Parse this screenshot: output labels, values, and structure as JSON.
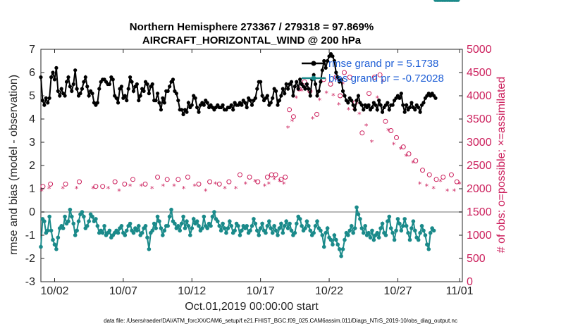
{
  "chart_data": {
    "type": "line",
    "title_line1": "Northern Hemisphere 273367 / 279318 = 97.869%",
    "title_line2": "AIRCRAFT_HORIZONTAL_WIND @ 200 hPa",
    "xlabel": "Oct.01,2019 00:00:00 start",
    "ylabel_left": "rmse and bias (model - observation)",
    "ylabel_right": "# of obs: o=possible; ×=assimilated",
    "footnote": "data file: /Users/raeder/DAI/ATM_forcXX/CAM6_setup/f.e21.FHIST_BGC.f09_025.CAM6assim.011/Diags_NTrS_2019-10/obs_diag_output.nc",
    "xlim": [
      0.5,
      31.2
    ],
    "ylim_left": [
      -3,
      7
    ],
    "ylim_right": [
      0,
      5000
    ],
    "x_ticks": [
      1.5,
      6.5,
      11.5,
      16.5,
      21.5,
      26.5,
      31.0
    ],
    "x_ticklabels": [
      "10/02",
      "10/07",
      "10/12",
      "10/17",
      "10/22",
      "10/27",
      "11/01"
    ],
    "y_left_ticks": [
      "-3",
      "-2",
      "-1",
      "0",
      "1",
      "2",
      "3",
      "4",
      "5",
      "6",
      "7"
    ],
    "y_right_ticks": [
      "0",
      "500",
      "1000",
      "1500",
      "2000",
      "2500",
      "3000",
      "3500",
      "4000",
      "4500",
      "5000"
    ],
    "legend": [
      {
        "name": "rmse",
        "label": "rmse grand pr = 5.1738"
      },
      {
        "name": "bias",
        "label": "bias grand pr = -0.72028"
      }
    ],
    "colors": {
      "rmse": "#000000",
      "bias": "#1a8a8a",
      "obs": "#cc1f5c",
      "zero": "#b8b8b8",
      "legend_text": "#1f5fd6"
    },
    "x": [
      0.5,
      0.625,
      0.75,
      0.875,
      1.0,
      1.125,
      1.25,
      1.375,
      1.5,
      1.625,
      1.75,
      1.875,
      2.0,
      2.125,
      2.25,
      2.375,
      2.5,
      2.625,
      2.75,
      2.875,
      3.0,
      3.125,
      3.25,
      3.375,
      3.5,
      3.625,
      3.75,
      3.875,
      4.0,
      4.125,
      4.25,
      4.375,
      4.5,
      4.625,
      4.75,
      4.875,
      5.0,
      5.125,
      5.25,
      5.375,
      5.5,
      5.625,
      5.75,
      5.875,
      6.0,
      6.125,
      6.25,
      6.375,
      6.5,
      6.625,
      6.75,
      6.875,
      7.0,
      7.125,
      7.25,
      7.375,
      7.5,
      7.625,
      7.75,
      7.875,
      8.0,
      8.125,
      8.25,
      8.375,
      8.5,
      8.625,
      8.75,
      8.875,
      9.0,
      9.125,
      9.25,
      9.375,
      9.5,
      9.625,
      9.75,
      9.875,
      10.0,
      10.125,
      10.25,
      10.375,
      10.5,
      10.625,
      10.75,
      10.875,
      11.0,
      11.125,
      11.25,
      11.375,
      11.5,
      11.625,
      11.75,
      11.875,
      12.0,
      12.125,
      12.25,
      12.375,
      12.5,
      12.625,
      12.75,
      12.875,
      13.0,
      13.125,
      13.25,
      13.375,
      13.5,
      13.625,
      13.75,
      13.875,
      14.0,
      14.125,
      14.25,
      14.375,
      14.5,
      14.625,
      14.75,
      14.875,
      15.0,
      15.125,
      15.25,
      15.375,
      15.5,
      15.625,
      15.75,
      15.875,
      16.0,
      16.125,
      16.25,
      16.375,
      16.5,
      16.625,
      16.75,
      16.875,
      17.0,
      17.125,
      17.25,
      17.375,
      17.5,
      17.625,
      17.75,
      17.875,
      18.0,
      18.125,
      18.25,
      18.375,
      18.5,
      18.625,
      18.75,
      18.875,
      19.0,
      19.125,
      19.25,
      19.375,
      19.5,
      19.625,
      19.75,
      19.875,
      20.0,
      20.125,
      20.25,
      20.375,
      20.5,
      20.625,
      20.75,
      20.875,
      21.0,
      21.125,
      21.25,
      21.375,
      21.5,
      21.625,
      21.75,
      21.875,
      22.0,
      22.125,
      22.25,
      22.375,
      22.5,
      22.625,
      22.75,
      22.875,
      23.0,
      23.125,
      23.25,
      23.375,
      23.5,
      23.625,
      23.75,
      23.875,
      24.0,
      24.125,
      24.25,
      24.375,
      24.5,
      24.625,
      24.75,
      24.875,
      25.0,
      25.125,
      25.25,
      25.375,
      25.5,
      25.625,
      25.75,
      25.875,
      26.0,
      26.125,
      26.25,
      26.375,
      26.5,
      26.625,
      26.75,
      26.875,
      27.0,
      27.125,
      27.25,
      27.375,
      27.5,
      27.625,
      27.75,
      27.875,
      28.0,
      28.125,
      28.25,
      28.375,
      28.5,
      28.625,
      28.75,
      28.875,
      29.0,
      29.125,
      29.25,
      29.375,
      29.5,
      29.625,
      29.75,
      29.875,
      30.0,
      30.125,
      30.25,
      30.375,
      30.5,
      30.625,
      30.75,
      30.875
    ],
    "rmse": [
      5.8,
      4.8,
      4.6,
      4.9,
      4.7,
      4.9,
      5.8,
      6.0,
      5.7,
      6.2,
      5.2,
      5.0,
      5.3,
      5.1,
      5.0,
      5.6,
      5.8,
      5.4,
      5.2,
      5.5,
      6.1,
      5.3,
      5.0,
      5.1,
      5.3,
      5.6,
      5.8,
      5.4,
      5.0,
      5.2,
      5.1,
      4.7,
      4.6,
      4.7,
      5.3,
      5.6,
      5.7,
      5.7,
      5.6,
      5.5,
      5.5,
      5.8,
      5.7,
      5.0,
      4.9,
      4.7,
      5.3,
      5.4,
      4.9,
      5.0,
      4.8,
      5.3,
      5.8,
      5.6,
      5.2,
      5.4,
      5.5,
      4.8,
      5.0,
      5.3,
      5.2,
      5.6,
      5.5,
      5.1,
      5.4,
      5.5,
      4.8,
      4.8,
      5.1,
      4.7,
      4.4,
      4.9,
      4.7,
      5.2,
      5.2,
      5.4,
      5.6,
      5.7,
      5.2,
      5.1,
      4.8,
      4.4,
      4.4,
      4.2,
      4.4,
      4.3,
      4.7,
      4.5,
      4.6,
      5.0,
      4.9,
      4.5,
      4.3,
      4.6,
      4.7,
      4.6,
      4.8,
      4.7,
      4.5,
      4.6,
      4.5,
      4.4,
      4.5,
      4.6,
      4.5,
      4.5,
      4.6,
      4.4,
      4.4,
      4.5,
      4.5,
      4.6,
      4.4,
      4.7,
      4.6,
      4.6,
      4.7,
      4.6,
      4.8,
      4.7,
      4.5,
      4.9,
      4.8,
      4.6,
      4.8,
      4.9,
      5.3,
      5.6,
      5.6,
      5.0,
      4.8,
      4.9,
      5.0,
      4.6,
      4.7,
      4.9,
      5.3,
      5.2,
      4.6,
      4.8,
      5.0,
      5.3,
      5.1,
      5.5,
      5.3,
      5.5,
      5.6,
      5.0,
      5.4,
      5.6,
      5.3,
      5.7,
      5.5,
      5.4,
      5.3,
      5.5,
      5.3,
      5.0,
      5.7,
      5.9,
      5.5,
      5.0,
      5.2,
      5.6,
      6.1,
      6.5,
      6.2,
      6.5,
      6.7,
      6.8,
      6.7,
      6.5,
      6.0,
      5.8,
      5.6,
      5.7,
      5.2,
      5.0,
      4.8,
      4.7,
      4.9,
      4.8,
      4.6,
      4.4,
      4.8,
      5.0,
      4.7,
      4.6,
      4.4,
      4.6,
      4.5,
      4.6,
      4.4,
      4.5,
      4.7,
      4.6,
      4.4,
      4.8,
      4.6,
      4.3,
      4.5,
      4.6,
      4.7,
      4.4,
      4.6,
      4.6,
      4.8,
      4.9,
      5.0,
      4.9,
      5.1,
      4.6,
      4.3,
      4.6,
      4.4,
      4.5,
      4.7,
      4.5,
      4.4,
      4.6,
      4.5,
      4.3,
      4.6,
      4.7,
      4.9,
      5.0,
      5.1,
      5.0,
      5.1,
      5.0,
      4.9
    ],
    "bias": [
      -1.5,
      -0.3,
      -0.4,
      -0.9,
      -0.8,
      -0.2,
      -0.8,
      -1.2,
      -1.4,
      -1.6,
      -1.1,
      -0.7,
      -0.6,
      -0.7,
      -0.2,
      -0.5,
      -0.4,
      0.1,
      -0.2,
      -0.5,
      -1.0,
      -0.8,
      -0.4,
      -0.1,
      0.0,
      -0.2,
      -0.7,
      -0.6,
      -0.4,
      -0.1,
      -0.2,
      -0.4,
      -0.3,
      -0.6,
      -0.9,
      -0.8,
      -0.9,
      -0.6,
      -1.0,
      -0.9,
      -0.8,
      -1.1,
      -1.0,
      -0.9,
      -0.8,
      -0.9,
      -0.7,
      -0.6,
      -0.9,
      -1.0,
      -0.8,
      -0.6,
      -0.5,
      -0.8,
      -0.9,
      -0.7,
      -0.8,
      -0.6,
      -1.0,
      -0.9,
      -0.7,
      -0.6,
      -1.1,
      -1.6,
      -0.9,
      -0.8,
      -0.5,
      -0.7,
      -0.2,
      -0.4,
      -0.7,
      -1.0,
      -0.8,
      -0.6,
      -0.6,
      -0.2,
      0.1,
      -0.4,
      -0.5,
      -0.7,
      -0.6,
      -0.8,
      -0.5,
      -0.2,
      -0.7,
      -0.4,
      -0.6,
      -1.0,
      -0.7,
      -0.3,
      -0.5,
      -0.4,
      -0.6,
      -0.8,
      -0.7,
      -0.2,
      -0.6,
      -0.7,
      -0.5,
      -0.6,
      -0.2,
      0.0,
      -0.3,
      -0.4,
      -0.6,
      -0.8,
      -0.5,
      -0.7,
      -0.9,
      -0.7,
      -0.4,
      -0.6,
      -0.9,
      -0.8,
      -0.5,
      -0.6,
      -1.0,
      -0.8,
      -0.6,
      -0.7,
      -0.6,
      -0.9,
      -0.8,
      -0.6,
      -0.3,
      -0.5,
      -0.8,
      -1.0,
      -0.7,
      -0.5,
      -0.8,
      -0.9,
      -0.6,
      -0.4,
      -0.7,
      -0.9,
      -0.6,
      -0.8,
      -1.0,
      -0.7,
      -0.5,
      -0.9,
      -0.6,
      -0.4,
      -0.7,
      -0.5,
      -0.8,
      -1.0,
      -0.9,
      -0.5,
      -0.2,
      -0.3,
      -0.6,
      -0.8,
      -0.7,
      -0.4,
      -0.6,
      -0.8,
      -1.0,
      -0.9,
      -0.6,
      -0.4,
      -0.7,
      -0.8,
      -1.0,
      -1.5,
      -0.9,
      -0.7,
      -1.1,
      -1.2,
      -1.4,
      -1.0,
      -1.2,
      -1.4,
      -1.6,
      -1.9,
      -1.6,
      -1.2,
      -0.9,
      -1.0,
      -0.8,
      -0.6,
      -0.9,
      -0.7,
      0.2,
      -0.1,
      -0.3,
      -0.7,
      -0.9,
      -0.6,
      -1.0,
      -0.9,
      -1.1,
      -0.8,
      -1.2,
      -1.0,
      -0.9,
      -1.1,
      -0.7,
      -0.5,
      -0.9,
      -1.0,
      -0.4,
      -0.2,
      -0.7,
      -0.9,
      -1.2,
      -0.8,
      -0.3,
      -0.5,
      -0.8,
      -0.6,
      -0.3,
      -0.6,
      -0.9,
      -1.2,
      -0.7,
      -0.4,
      -0.8,
      -1.1,
      -1.2,
      -0.9,
      -0.6,
      -0.8,
      -1.0,
      -1.4,
      -1.6,
      -0.9,
      -0.7,
      -0.8
    ],
    "obs_possible_x": [
      0.65,
      1.2,
      2.3,
      3.3,
      4.5,
      5.0,
      5.9,
      6.6,
      7.2,
      8.1,
      9.0,
      9.7,
      10.5,
      11.2,
      12.0,
      12.8,
      13.5,
      14.2,
      15.0,
      15.7,
      16.3,
      17.0,
      17.3,
      17.6,
      18.0,
      18.3,
      18.6,
      18.9,
      19.3,
      19.7,
      20.1,
      20.6,
      21.1,
      21.6,
      22.0,
      22.3,
      22.6,
      23.0,
      23.4,
      23.9,
      24.4,
      24.8,
      25.2,
      25.6,
      26.0,
      26.4,
      26.9,
      27.3,
      27.8,
      28.3,
      28.8,
      29.3,
      29.8,
      30.4,
      30.8
    ],
    "obs_possible_y": [
      2050,
      2100,
      2100,
      2150,
      2050,
      2050,
      2150,
      2100,
      2200,
      2100,
      2250,
      2200,
      2200,
      2250,
      2100,
      2150,
      2100,
      2150,
      2300,
      2250,
      2150,
      2250,
      2300,
      2300,
      2200,
      2250,
      3700,
      3550,
      4150,
      4300,
      4100,
      3600,
      4350,
      4250,
      4400,
      4000,
      4500,
      4400,
      3850,
      3200,
      4050,
      4400,
      4450,
      3450,
      3250,
      3100,
      2900,
      2750,
      2600,
      2400,
      2300,
      2200,
      2250,
      2300,
      2150
    ],
    "obs_assim_x": [
      0.55,
      1.1,
      2.1,
      3.1,
      4.3,
      5.4,
      6.2,
      7.0,
      7.8,
      8.6,
      9.4,
      10.2,
      10.9,
      11.7,
      12.5,
      13.2,
      13.9,
      14.7,
      15.4,
      16.1,
      16.8,
      17.1,
      17.5,
      17.9,
      18.2,
      18.5,
      18.8,
      19.1,
      19.5,
      19.9,
      20.3,
      20.8,
      21.3,
      21.8,
      22.2,
      22.5,
      22.9,
      23.3,
      23.7,
      24.2,
      24.6,
      25.0,
      25.4,
      25.8,
      26.2,
      26.7,
      27.1,
      27.6,
      28.1,
      28.6,
      29.1,
      29.6,
      30.1,
      30.6,
      31.0
    ],
    "obs_assim_x_note": "",
    "obs_assim_y": [
      1950,
      2000,
      2000,
      2000,
      2000,
      2000,
      1950,
      2050,
      2050,
      2000,
      2050,
      2050,
      2000,
      2050,
      1950,
      2100,
      2000,
      2000,
      2100,
      2150,
      2050,
      2100,
      2200,
      2150,
      2100,
      3300,
      3450,
      3950,
      4100,
      4200,
      3500,
      3900,
      4050,
      4000,
      3800,
      4250,
      3700,
      3700,
      3600,
      3350,
      3000,
      3950,
      4300,
      3250,
      2950,
      2850,
      2700,
      2550,
      2100,
      2050,
      2000,
      2150,
      1950,
      1950,
      2100
    ]
  },
  "footnote_label": "data file: /Users/raeder/DAI/ATM_forcXX/CAM6_setup/f.e21.FHIST_BGC.f09_025.CAM6assim.011/Diags_NTrS_2019-10/obs_diag_output.nc"
}
